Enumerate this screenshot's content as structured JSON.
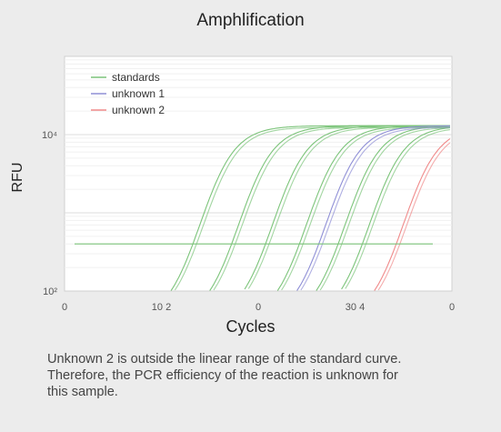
{
  "chart_data": {
    "type": "line",
    "title": "Amphlification",
    "xlabel": "Cycles",
    "ylabel": "RFU",
    "y_scale": "log",
    "ylim": [
      100,
      100000
    ],
    "xlim": [
      0,
      40
    ],
    "x_ticks": [
      "0",
      "10 2",
      "0",
      "30 4",
      "0"
    ],
    "y_ticks": [
      "10⁴",
      "10²"
    ],
    "legend": {
      "position": "top-left",
      "entries": [
        {
          "name": "standards",
          "color": "#7cc47a"
        },
        {
          "name": "unknown 1",
          "color": "#8f8fd6"
        },
        {
          "name": "unknown 2",
          "color": "#f08a8a"
        }
      ]
    },
    "threshold": 400,
    "series": [
      {
        "name": "standards",
        "color": "#7cc47a",
        "midpoints": [
          14,
          18,
          21.5,
          25,
          29,
          31.5
        ]
      },
      {
        "name": "unknown 1",
        "color": "#8f8fd6",
        "midpoints": [
          27
        ]
      },
      {
        "name": "unknown 2",
        "color": "#f08a8a",
        "midpoints": [
          35
        ]
      }
    ],
    "plateau": 13000
  },
  "caption_lines": [
    "Unknown 2 is outside the linear range of the standard curve.",
    "Therefore, the PCR efficiency of the reaction is unknown for",
    "this sample."
  ]
}
